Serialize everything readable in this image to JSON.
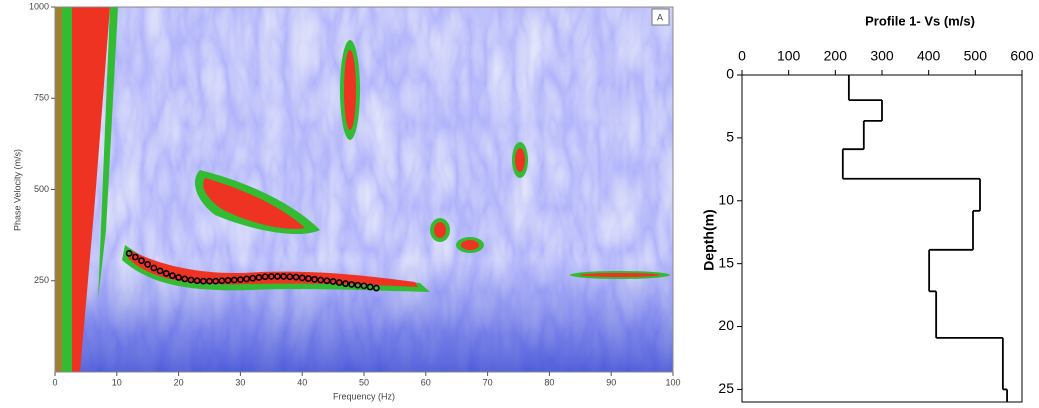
{
  "chart_data": [
    {
      "type": "scatter",
      "panel_label": "A",
      "xlabel": "Frequency (Hz)",
      "ylabel": "Phase Velocity (m/s)",
      "xlim": [
        0,
        100
      ],
      "xticks": [
        0,
        10,
        20,
        30,
        40,
        50,
        60,
        70,
        80,
        90,
        100
      ],
      "ylim": [
        0,
        1000
      ],
      "yticks": [
        250,
        500,
        750,
        1000
      ],
      "color": "#000000",
      "x": [
        12,
        13,
        14,
        15,
        16,
        17,
        18,
        19,
        20,
        21,
        22,
        23,
        24,
        25,
        26,
        27,
        28,
        29,
        30,
        31,
        32,
        33,
        34,
        35,
        36,
        37,
        38,
        39,
        40,
        41,
        42,
        43,
        44,
        45,
        46,
        47,
        48,
        49,
        50,
        51,
        52
      ],
      "values": [
        325,
        315,
        305,
        295,
        285,
        277,
        270,
        264,
        259,
        255,
        252,
        250,
        249,
        249,
        249,
        250,
        251,
        252,
        253,
        255,
        257,
        259,
        261,
        262,
        262,
        262,
        261,
        260,
        258,
        256,
        254,
        252,
        250,
        248,
        245,
        242,
        240,
        238,
        236,
        233,
        230
      ]
    },
    {
      "type": "step",
      "title": "Profile 1- Vs (m/s)",
      "ylabel": "Depth(m)",
      "xlim": [
        0,
        600
      ],
      "xticks": [
        0,
        100,
        200,
        300,
        400,
        500,
        600
      ],
      "ylim": [
        0,
        26
      ],
      "yticks": [
        0,
        5,
        10,
        15,
        20,
        25
      ],
      "inverted_y": true,
      "color": "#000000",
      "depth": [
        0,
        2,
        3.65,
        5.9,
        8.25,
        10.8,
        13.9,
        17.2,
        20.9,
        25,
        26
      ],
      "values": [
        229,
        300,
        261,
        216,
        510,
        495,
        401,
        416,
        559,
        568
      ]
    }
  ]
}
